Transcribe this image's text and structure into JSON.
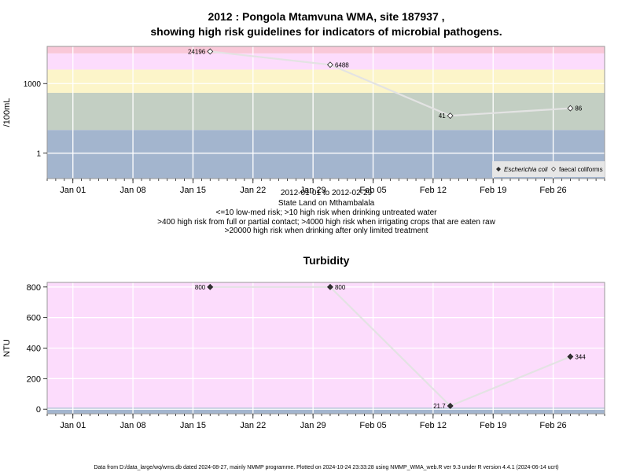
{
  "title_line1": "2012 : Pongola Mtamvuna WMA, site 187937 ,",
  "title_line2": "showing high risk guidelines for indicators of microbial pathogens.",
  "footer": "Data from D:/data_large/wq/wms.db dated 2024-08-27, mainly NMMP programme. Plotted on 2024-10-24 23:33:28 using NMMP_WMA_web.R ver 9.3 under R version 4.4.1 (2024-06-14 ucrt)",
  "chart_data": [
    {
      "type": "line",
      "y_scale": "log",
      "ylabel": "/100mL",
      "y_ticks": [
        {
          "value": 1,
          "label": "1"
        },
        {
          "value": 1000,
          "label": "1000"
        }
      ],
      "ylim": [
        0.08,
        40000
      ],
      "x_ticks": [
        {
          "date": "2012-01-01",
          "label": "Jan 01"
        },
        {
          "date": "2012-01-08",
          "label": "Jan 08"
        },
        {
          "date": "2012-01-15",
          "label": "Jan 15"
        },
        {
          "date": "2012-01-22",
          "label": "Jan 22"
        },
        {
          "date": "2012-01-29",
          "label": "Jan 29"
        },
        {
          "date": "2012-02-05",
          "label": "Feb 05"
        },
        {
          "date": "2012-02-12",
          "label": "Feb 12"
        },
        {
          "date": "2012-02-19",
          "label": "Feb 19"
        },
        {
          "date": "2012-02-26",
          "label": "Feb 26"
        }
      ],
      "xlim": [
        "2011-12-29",
        "2012-03-03"
      ],
      "bands": [
        {
          "from": 0.08,
          "to": 10,
          "color": "#a3b5ce"
        },
        {
          "from": 10,
          "to": 400,
          "color": "#c3cfc3"
        },
        {
          "from": 400,
          "to": 4000,
          "color": "#fcf5c9"
        },
        {
          "from": 4000,
          "to": 20000,
          "color": "#fcdcfc"
        },
        {
          "from": 20000,
          "to": 40000,
          "color": "#f9c8d8"
        }
      ],
      "series": [
        {
          "name": "faecal coliforms",
          "marker": "open-diamond",
          "points": [
            {
              "date": "2012-01-17",
              "value": 24196,
              "label": "24196",
              "label_side": "left"
            },
            {
              "date": "2012-01-31",
              "value": 6488,
              "label": "6488",
              "label_side": "right"
            },
            {
              "date": "2012-02-14",
              "value": 41,
              "label": "41",
              "label_side": "left"
            },
            {
              "date": "2012-02-28",
              "value": 86,
              "label": "86",
              "label_side": "right"
            }
          ]
        }
      ],
      "legend": {
        "position": "bottom-right",
        "entries": [
          {
            "name": "Escherichia coli",
            "marker": "filled-diamond",
            "italic": true
          },
          {
            "name": "faecal coliforms",
            "marker": "open-diamond",
            "italic": false
          }
        ]
      },
      "annotation_lines": [
        "2012-01-01 to 2012-02-29",
        "State Land on Mthambalala",
        "<=10 low-med risk; >10 high risk when drinking untreated water",
        ">400 high risk from full or partial contact; >4000 high risk when irrigating crops that are eaten raw",
        ">20000 high risk when drinking after only limited treatment"
      ]
    },
    {
      "type": "line",
      "title": "Turbidity",
      "ylabel": "NTU",
      "y_ticks": [
        {
          "value": 0,
          "label": "0"
        },
        {
          "value": 200,
          "label": "200"
        },
        {
          "value": 400,
          "label": "400"
        },
        {
          "value": 600,
          "label": "600"
        },
        {
          "value": 800,
          "label": "800"
        }
      ],
      "ylim": [
        -30,
        830
      ],
      "x_ticks": [
        {
          "date": "2012-01-01",
          "label": "Jan 01"
        },
        {
          "date": "2012-01-08",
          "label": "Jan 08"
        },
        {
          "date": "2012-01-15",
          "label": "Jan 15"
        },
        {
          "date": "2012-01-22",
          "label": "Jan 22"
        },
        {
          "date": "2012-01-29",
          "label": "Jan 29"
        },
        {
          "date": "2012-02-05",
          "label": "Feb 05"
        },
        {
          "date": "2012-02-12",
          "label": "Feb 12"
        },
        {
          "date": "2012-02-19",
          "label": "Feb 19"
        },
        {
          "date": "2012-02-26",
          "label": "Feb 26"
        }
      ],
      "xlim": [
        "2011-12-29",
        "2012-03-03"
      ],
      "bands": [
        {
          "from": -30,
          "to": 10,
          "color": "#a3b5ce"
        },
        {
          "from": 10,
          "to": 830,
          "color": "#fcdcfc"
        }
      ],
      "series": [
        {
          "name": "",
          "marker": "filled-diamond",
          "points": [
            {
              "date": "2012-01-17",
              "value": 800,
              "label": "800",
              "label_side": "left"
            },
            {
              "date": "2012-01-31",
              "value": 800,
              "label": "800",
              "label_side": "right"
            },
            {
              "date": "2012-02-14",
              "value": 21.7,
              "label": "21.7",
              "label_side": "left"
            },
            {
              "date": "2012-02-28",
              "value": 344,
              "label": "344",
              "label_side": "right"
            }
          ]
        }
      ]
    }
  ]
}
